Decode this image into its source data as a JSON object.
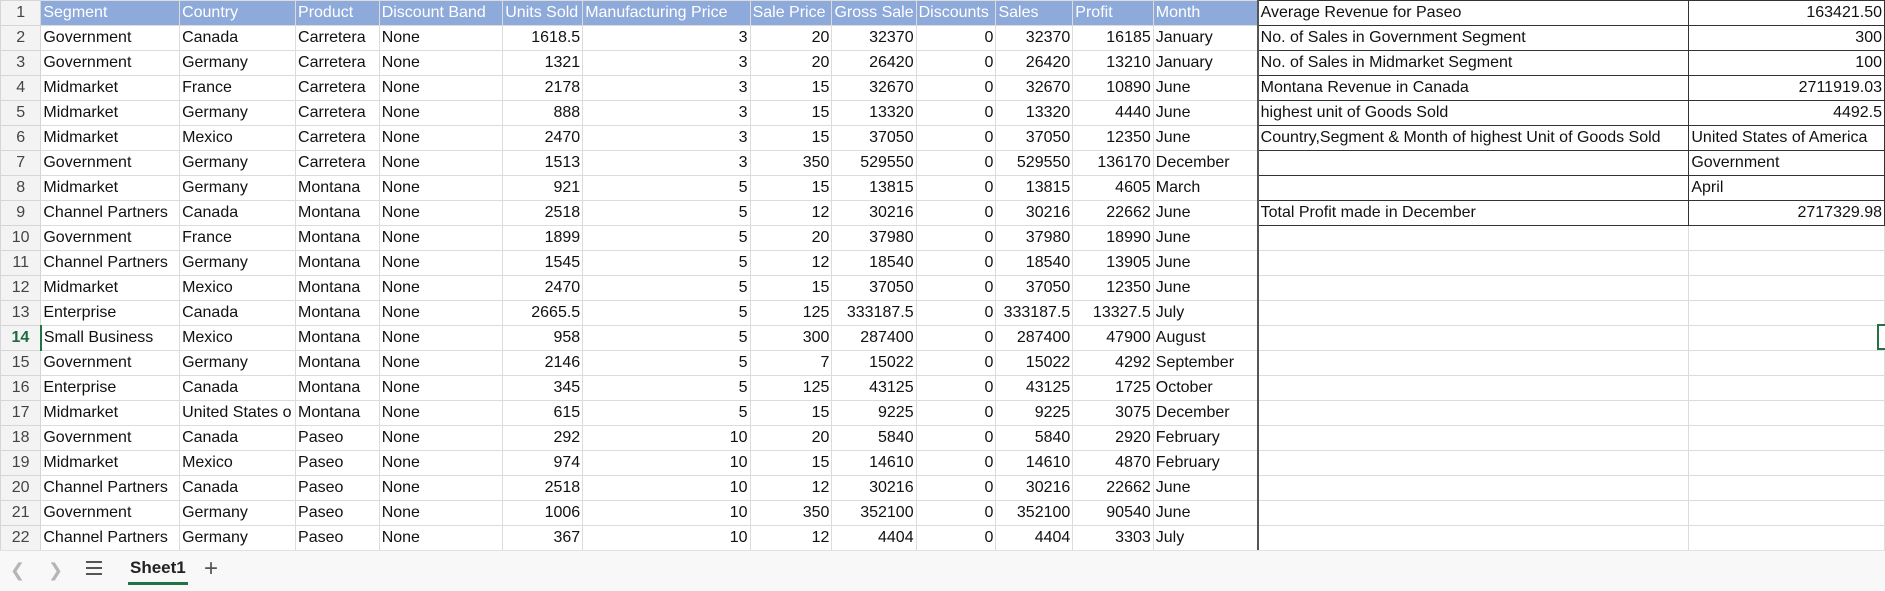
{
  "columns": [
    "Segment",
    "Country",
    "Product",
    "Discount Band",
    "Units Sold",
    "Manufacturing Price",
    "Sale Price",
    "Gross Sale",
    "Discounts",
    "Sales",
    "Profit",
    "Month"
  ],
  "rows": [
    [
      "Government",
      "Canada",
      "Carretera",
      "None",
      "1618.5",
      "3",
      "20",
      "32370",
      "0",
      "32370",
      "16185",
      "January"
    ],
    [
      "Government",
      "Germany",
      "Carretera",
      "None",
      "1321",
      "3",
      "20",
      "26420",
      "0",
      "26420",
      "13210",
      "January"
    ],
    [
      "Midmarket",
      "France",
      "Carretera",
      "None",
      "2178",
      "3",
      "15",
      "32670",
      "0",
      "32670",
      "10890",
      "June"
    ],
    [
      "Midmarket",
      "Germany",
      "Carretera",
      "None",
      "888",
      "3",
      "15",
      "13320",
      "0",
      "13320",
      "4440",
      "June"
    ],
    [
      "Midmarket",
      "Mexico",
      "Carretera",
      "None",
      "2470",
      "3",
      "15",
      "37050",
      "0",
      "37050",
      "12350",
      "June"
    ],
    [
      "Government",
      "Germany",
      "Carretera",
      "None",
      "1513",
      "3",
      "350",
      "529550",
      "0",
      "529550",
      "136170",
      "December"
    ],
    [
      "Midmarket",
      "Germany",
      "Montana",
      "None",
      "921",
      "5",
      "15",
      "13815",
      "0",
      "13815",
      "4605",
      "March"
    ],
    [
      "Channel Partners",
      "Canada",
      "Montana",
      "None",
      "2518",
      "5",
      "12",
      "30216",
      "0",
      "30216",
      "22662",
      "June"
    ],
    [
      "Government",
      "France",
      "Montana",
      "None",
      "1899",
      "5",
      "20",
      "37980",
      "0",
      "37980",
      "18990",
      "June"
    ],
    [
      "Channel Partners",
      "Germany",
      "Montana",
      "None",
      "1545",
      "5",
      "12",
      "18540",
      "0",
      "18540",
      "13905",
      "June"
    ],
    [
      "Midmarket",
      "Mexico",
      "Montana",
      "None",
      "2470",
      "5",
      "15",
      "37050",
      "0",
      "37050",
      "12350",
      "June"
    ],
    [
      "Enterprise",
      "Canada",
      "Montana",
      "None",
      "2665.5",
      "5",
      "125",
      "333187.5",
      "0",
      "333187.5",
      "13327.5",
      "July"
    ],
    [
      "Small Business",
      "Mexico",
      "Montana",
      "None",
      "958",
      "5",
      "300",
      "287400",
      "0",
      "287400",
      "47900",
      "August"
    ],
    [
      "Government",
      "Germany",
      "Montana",
      "None",
      "2146",
      "5",
      "7",
      "15022",
      "0",
      "15022",
      "4292",
      "September"
    ],
    [
      "Enterprise",
      "Canada",
      "Montana",
      "None",
      "345",
      "5",
      "125",
      "43125",
      "0",
      "43125",
      "1725",
      "October"
    ],
    [
      "Midmarket",
      "United States o",
      "Montana",
      "None",
      "615",
      "5",
      "15",
      "9225",
      "0",
      "9225",
      "3075",
      "December"
    ],
    [
      "Government",
      "Canada",
      "Paseo",
      "None",
      "292",
      "10",
      "20",
      "5840",
      "0",
      "5840",
      "2920",
      "February"
    ],
    [
      "Midmarket",
      "Mexico",
      "Paseo",
      "None",
      "974",
      "10",
      "15",
      "14610",
      "0",
      "14610",
      "4870",
      "February"
    ],
    [
      "Channel Partners",
      "Canada",
      "Paseo",
      "None",
      "2518",
      "10",
      "12",
      "30216",
      "0",
      "30216",
      "22662",
      "June"
    ],
    [
      "Government",
      "Germany",
      "Paseo",
      "None",
      "1006",
      "10",
      "350",
      "352100",
      "0",
      "352100",
      "90540",
      "June"
    ],
    [
      "Channel Partners",
      "Germany",
      "Paseo",
      "None",
      "367",
      "10",
      "12",
      "4404",
      "0",
      "4404",
      "3303",
      "July"
    ]
  ],
  "summary": [
    {
      "label": "Average Revenue for Paseo",
      "value": "163421.50"
    },
    {
      "label": "No. of Sales in Government Segment",
      "value": "300"
    },
    {
      "label": "No. of Sales in Midmarket Segment",
      "value": "100"
    },
    {
      "label": "Montana Revenue in Canada",
      "value": "2711919.03"
    },
    {
      "label": "highest unit of Goods Sold",
      "value": "4492.5"
    },
    {
      "label": "Country,Segment & Month of highest Unit of Goods Sold",
      "value": "United States of America"
    },
    {
      "label": "",
      "value": "Government"
    },
    {
      "label": "",
      "value": "April"
    },
    {
      "label": "Total Profit made in December",
      "value": "2717329.98"
    }
  ],
  "sheet_tabs": {
    "active": "Sheet1"
  },
  "active_row": 14,
  "icons": {
    "prev": "chevron-left-icon",
    "next": "chevron-right-icon",
    "all": "hamburger-menu-icon",
    "add": "plus-icon"
  }
}
